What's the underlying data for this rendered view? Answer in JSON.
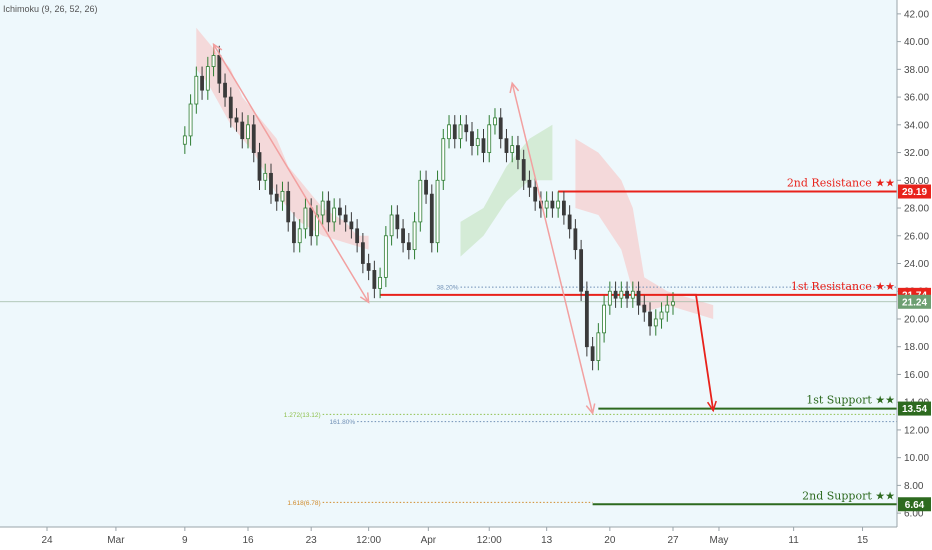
{
  "indicator_label": "Ichimoku (9, 26, 52, 26)",
  "colors": {
    "background": "#ffffff",
    "plot_tint": "#eef8fc",
    "candle_up": "#2e7d32",
    "candle_down": "#3a3a3a",
    "resistance": "#e8221b",
    "support": "#2d6a1f",
    "current_price": "#6d9f72",
    "arrow_pink": "#f2a0a0",
    "cloud_bear": "#f4d3d3",
    "cloud_bull": "#cfe9cf",
    "fib_green": "#8dbf4a",
    "fib_blue": "#6f8fb5",
    "fib_orange": "#d08a2a"
  },
  "chart_data": {
    "type": "candlestick",
    "title": "",
    "xlabel": "",
    "ylabel": "",
    "ylim": [
      5,
      43
    ],
    "yticks": [
      "6.00",
      "8.00",
      "10.00",
      "12.00",
      "14.00",
      "16.00",
      "18.00",
      "20.00",
      "22.00",
      "24.00",
      "26.00",
      "28.00",
      "30.00",
      "32.00",
      "34.00",
      "36.00",
      "38.00",
      "40.00",
      "42.00"
    ],
    "xrange": [
      0,
      74
    ],
    "xticks": [
      {
        "x": 0,
        "label": "24"
      },
      {
        "x": 6,
        "label": "Mar"
      },
      {
        "x": 12,
        "label": "9"
      },
      {
        "x": 17.5,
        "label": "16"
      },
      {
        "x": 23,
        "label": "23"
      },
      {
        "x": 28,
        "label": "12:00"
      },
      {
        "x": 33.2,
        "label": "Apr"
      },
      {
        "x": 38.5,
        "label": "12:00"
      },
      {
        "x": 43.5,
        "label": "13"
      },
      {
        "x": 49,
        "label": "20"
      },
      {
        "x": 54.5,
        "label": "27"
      },
      {
        "x": 58.5,
        "label": "May"
      },
      {
        "x": 65,
        "label": "11"
      },
      {
        "x": 71,
        "label": "15"
      }
    ],
    "close_series": [
      {
        "x": 12,
        "v": 33.2
      },
      {
        "x": 12.5,
        "v": 35.5
      },
      {
        "x": 13,
        "v": 37.5
      },
      {
        "x": 13.5,
        "v": 36.5
      },
      {
        "x": 14,
        "v": 38.2
      },
      {
        "x": 14.5,
        "v": 39.0
      },
      {
        "x": 15,
        "v": 37.0
      },
      {
        "x": 15.5,
        "v": 36.0
      },
      {
        "x": 16,
        "v": 34.5
      },
      {
        "x": 16.5,
        "v": 34.2
      },
      {
        "x": 17,
        "v": 33.0
      },
      {
        "x": 17.5,
        "v": 34.0
      },
      {
        "x": 18,
        "v": 32.0
      },
      {
        "x": 18.5,
        "v": 30.0
      },
      {
        "x": 19,
        "v": 30.5
      },
      {
        "x": 19.5,
        "v": 29.0
      },
      {
        "x": 20,
        "v": 28.5
      },
      {
        "x": 20.5,
        "v": 29.2
      },
      {
        "x": 21,
        "v": 27.0
      },
      {
        "x": 21.5,
        "v": 25.5
      },
      {
        "x": 22,
        "v": 26.5
      },
      {
        "x": 22.5,
        "v": 28.0
      },
      {
        "x": 23,
        "v": 26.0
      },
      {
        "x": 23.5,
        "v": 27.5
      },
      {
        "x": 24,
        "v": 28.5
      },
      {
        "x": 24.5,
        "v": 27.0
      },
      {
        "x": 25,
        "v": 28.0
      },
      {
        "x": 25.5,
        "v": 27.5
      },
      {
        "x": 26,
        "v": 27.0
      },
      {
        "x": 26.5,
        "v": 26.5
      },
      {
        "x": 27,
        "v": 25.5
      },
      {
        "x": 27.5,
        "v": 24.0
      },
      {
        "x": 28,
        "v": 23.5
      },
      {
        "x": 28.5,
        "v": 22.2
      },
      {
        "x": 29,
        "v": 23.0
      },
      {
        "x": 29.5,
        "v": 26.0
      },
      {
        "x": 30,
        "v": 27.5
      },
      {
        "x": 30.5,
        "v": 26.5
      },
      {
        "x": 31,
        "v": 25.5
      },
      {
        "x": 31.5,
        "v": 25.0
      },
      {
        "x": 32,
        "v": 27.0
      },
      {
        "x": 32.5,
        "v": 30.0
      },
      {
        "x": 33,
        "v": 29.0
      },
      {
        "x": 33.5,
        "v": 25.5
      },
      {
        "x": 34,
        "v": 30.0
      },
      {
        "x": 34.5,
        "v": 33.0
      },
      {
        "x": 35,
        "v": 34.0
      },
      {
        "x": 35.5,
        "v": 33.0
      },
      {
        "x": 36,
        "v": 34.0
      },
      {
        "x": 36.5,
        "v": 33.5
      },
      {
        "x": 37,
        "v": 32.5
      },
      {
        "x": 37.5,
        "v": 33.0
      },
      {
        "x": 38,
        "v": 32.0
      },
      {
        "x": 38.5,
        "v": 34.0
      },
      {
        "x": 39,
        "v": 34.5
      },
      {
        "x": 39.5,
        "v": 33.0
      },
      {
        "x": 40,
        "v": 32.0
      },
      {
        "x": 40.5,
        "v": 32.5
      },
      {
        "x": 41,
        "v": 31.5
      },
      {
        "x": 41.5,
        "v": 30.0
      },
      {
        "x": 42,
        "v": 29.5
      },
      {
        "x": 42.5,
        "v": 28.5
      },
      {
        "x": 43,
        "v": 28.0
      },
      {
        "x": 43.5,
        "v": 28.5
      },
      {
        "x": 44,
        "v": 28.0
      },
      {
        "x": 44.5,
        "v": 28.5
      },
      {
        "x": 45,
        "v": 27.5
      },
      {
        "x": 45.5,
        "v": 26.5
      },
      {
        "x": 46,
        "v": 25.0
      },
      {
        "x": 46.5,
        "v": 22.0
      },
      {
        "x": 47,
        "v": 18.0
      },
      {
        "x": 47.5,
        "v": 17.0
      },
      {
        "x": 48,
        "v": 19.0
      },
      {
        "x": 48.5,
        "v": 21.0
      },
      {
        "x": 49,
        "v": 22.0
      },
      {
        "x": 49.5,
        "v": 21.5
      },
      {
        "x": 50,
        "v": 22.0
      },
      {
        "x": 50.5,
        "v": 21.5
      },
      {
        "x": 51,
        "v": 22.0
      },
      {
        "x": 51.5,
        "v": 21.0
      },
      {
        "x": 52,
        "v": 20.5
      },
      {
        "x": 52.5,
        "v": 19.5
      },
      {
        "x": 53,
        "v": 20.0
      },
      {
        "x": 53.5,
        "v": 20.5
      },
      {
        "x": 54,
        "v": 21.0
      },
      {
        "x": 54.5,
        "v": 21.24
      }
    ],
    "levels": [
      {
        "name": "resistance-2",
        "label": "2nd Resistance ★★",
        "value": 29.19,
        "badge": "29.19",
        "kind": "resistance",
        "x_start": 44.5,
        "x_end": 74
      },
      {
        "name": "resistance-1",
        "label": "1st Resistance ★★",
        "value": 21.74,
        "badge": "21.74",
        "kind": "resistance",
        "x_start": 29,
        "x_end": 74
      },
      {
        "name": "support-1",
        "label": "1st Support ★★",
        "value": 13.54,
        "badge": "13.54",
        "kind": "support",
        "x_start": 48,
        "x_end": 74
      },
      {
        "name": "support-2",
        "label": "2nd Support ★★",
        "value": 6.64,
        "badge": "6.64",
        "kind": "support",
        "x_start": 47.5,
        "x_end": 74
      }
    ],
    "current_price": {
      "value": 21.24,
      "badge": "21.24"
    },
    "fib_lines": [
      {
        "label": "38.20%",
        "value": 22.3,
        "x_start": 36,
        "x_end": 74,
        "color_key": "fib_blue"
      },
      {
        "label": "1.272(13.12)",
        "value": 13.12,
        "x_start": 24,
        "x_end": 74,
        "color_key": "fib_green"
      },
      {
        "label": "161.80%",
        "value": 12.6,
        "x_start": 27,
        "x_end": 74,
        "color_key": "fib_blue"
      },
      {
        "label": "1.618(6.78)",
        "value": 6.78,
        "x_start": 24,
        "x_end": 47.5,
        "color_key": "fib_orange"
      }
    ],
    "pink_arrows": [
      {
        "name": "arrow-swing-a",
        "from": [
          14.5,
          39.8
        ],
        "to": [
          28,
          21.2
        ]
      },
      {
        "name": "arrow-swing-b",
        "from": [
          40.5,
          37.0
        ],
        "to": [
          47.5,
          13.2
        ]
      }
    ],
    "red_arrow": {
      "points": [
        [
          54,
          21.74
        ],
        [
          56.5,
          21.74
        ],
        [
          58,
          13.4
        ]
      ]
    },
    "cloud_bear": [
      [
        13,
        41
      ],
      [
        14,
        40
      ],
      [
        15,
        39
      ],
      [
        16,
        38
      ],
      [
        17,
        36
      ],
      [
        18,
        35
      ],
      [
        19,
        34
      ],
      [
        20,
        33
      ],
      [
        21,
        31
      ],
      [
        22,
        30
      ],
      [
        23,
        29
      ],
      [
        24,
        28
      ],
      [
        25,
        27.5
      ],
      [
        26,
        27
      ],
      [
        27,
        26
      ],
      [
        28,
        26
      ],
      [
        28,
        25
      ],
      [
        26,
        25.5
      ],
      [
        24,
        26
      ],
      [
        22,
        27
      ],
      [
        20,
        29
      ],
      [
        18,
        32
      ],
      [
        16,
        34
      ],
      [
        14,
        37
      ],
      [
        13,
        38
      ]
    ],
    "cloud_bull": [
      [
        36,
        27
      ],
      [
        38,
        28
      ],
      [
        40,
        31
      ],
      [
        42,
        33
      ],
      [
        44,
        34
      ],
      [
        44,
        30
      ],
      [
        42,
        30
      ],
      [
        40,
        28.5
      ],
      [
        38,
        26
      ],
      [
        36,
        24.5
      ]
    ],
    "cloud_bear_2": [
      [
        46,
        33
      ],
      [
        48,
        32
      ],
      [
        50,
        30
      ],
      [
        51,
        28
      ],
      [
        52,
        23
      ],
      [
        54,
        22
      ],
      [
        56,
        21.5
      ],
      [
        58,
        21
      ],
      [
        58,
        20
      ],
      [
        56,
        20.5
      ],
      [
        54,
        21
      ],
      [
        52,
        20.5
      ],
      [
        51,
        22
      ],
      [
        50,
        25
      ],
      [
        48,
        27.5
      ],
      [
        46,
        28
      ]
    ]
  }
}
